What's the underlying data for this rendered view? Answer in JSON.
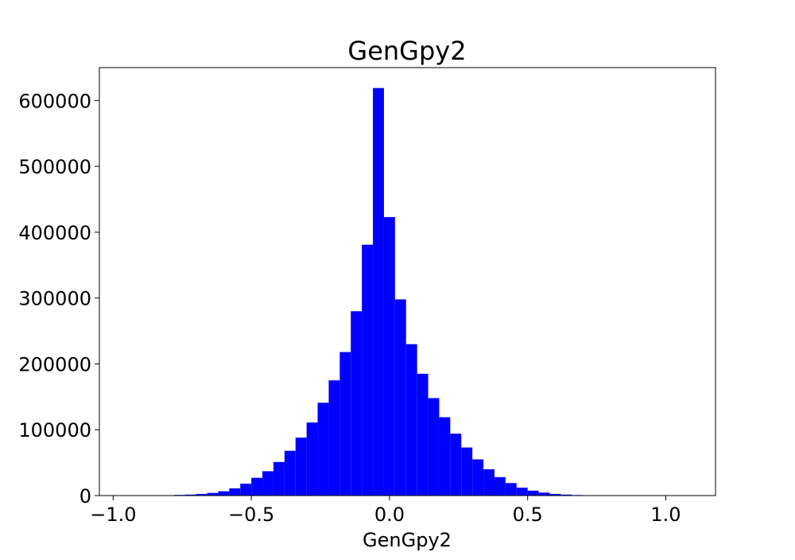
{
  "chart_data": {
    "type": "bar",
    "title": "GenGpy2",
    "xlabel": "GenGpy2",
    "ylabel": "",
    "xlim": [
      -1.05,
      1.18
    ],
    "ylim": [
      0,
      650000
    ],
    "x_ticks": [
      -1.0,
      -0.5,
      0.0,
      0.5,
      1.0
    ],
    "x_tick_labels": [
      "−1.0",
      "−0.5",
      "0.0",
      "0.5",
      "1.0"
    ],
    "y_ticks": [
      0,
      100000,
      200000,
      300000,
      400000,
      500000,
      600000
    ],
    "y_tick_labels": [
      "0",
      "100000",
      "200000",
      "300000",
      "400000",
      "500000",
      "600000"
    ],
    "grid": false,
    "color": "#0000ff",
    "bin_edges": [
      -0.78,
      -0.74,
      -0.7,
      -0.66,
      -0.62,
      -0.58,
      -0.54,
      -0.5,
      -0.46,
      -0.42,
      -0.38,
      -0.34,
      -0.3,
      -0.26,
      -0.22,
      -0.18,
      -0.14,
      -0.1,
      -0.06,
      -0.02,
      0.02,
      0.06,
      0.1,
      0.14,
      0.18,
      0.22,
      0.26,
      0.3,
      0.34,
      0.38,
      0.42,
      0.46,
      0.5,
      0.54,
      0.58,
      0.62,
      0.66,
      0.7,
      0.74,
      0.78
    ],
    "values": [
      1000,
      1500,
      2500,
      4000,
      6500,
      11000,
      18000,
      27000,
      37000,
      51000,
      68000,
      88000,
      111000,
      141000,
      175000,
      218000,
      280000,
      381000,
      619000,
      423000,
      298000,
      230000,
      185000,
      148000,
      119000,
      94000,
      73000,
      55000,
      40000,
      28000,
      19000,
      12000,
      7500,
      4500,
      2500,
      1500,
      800,
      400,
      200
    ]
  }
}
